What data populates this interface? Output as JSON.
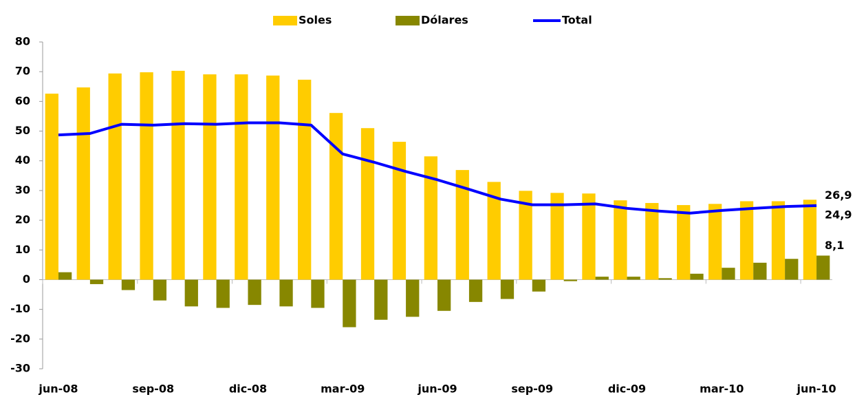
{
  "chart_data": {
    "type": "bar_line",
    "categories": [
      "jun-08",
      null,
      null,
      "sep-08",
      null,
      null,
      "dic-08",
      null,
      null,
      "mar-09",
      null,
      null,
      "jun-09",
      null,
      null,
      "sep-09",
      null,
      null,
      "dic-09",
      null,
      null,
      "mar-10",
      null,
      null,
      "jun-10"
    ],
    "series": [
      {
        "name": "Soles",
        "color": "#ffcc00",
        "kind": "bar",
        "values": [
          62.6,
          64.7,
          69.4,
          69.8,
          70.3,
          69.1,
          69.1,
          68.7,
          67.3,
          56.1,
          51.0,
          46.4,
          41.5,
          36.9,
          32.9,
          29.9,
          29.2,
          29.0,
          26.7,
          25.8,
          25.1,
          25.5,
          26.4,
          26.4,
          26.9
        ],
        "value_labels": [
          null,
          null,
          null,
          null,
          null,
          null,
          null,
          null,
          null,
          null,
          null,
          null,
          null,
          null,
          null,
          null,
          null,
          null,
          null,
          null,
          null,
          null,
          null,
          null,
          "26,9"
        ]
      },
      {
        "name": "Dólares",
        "color": "#878700",
        "kind": "bar",
        "values": [
          2.5,
          -1.5,
          -3.5,
          -7,
          -9,
          -9.5,
          -8.5,
          -9,
          -9.5,
          -16,
          -13.5,
          -12.5,
          -10.5,
          -7.5,
          -6.5,
          -4,
          -0.5,
          1,
          1,
          0.5,
          2,
          4,
          5.7,
          7,
          8.1
        ],
        "value_labels": [
          null,
          null,
          null,
          null,
          null,
          null,
          null,
          null,
          null,
          null,
          null,
          null,
          null,
          null,
          null,
          null,
          null,
          null,
          null,
          null,
          null,
          null,
          null,
          null,
          "8,1"
        ]
      },
      {
        "name": "Total",
        "color": "#0000ff",
        "kind": "line",
        "values": [
          48.7,
          49.2,
          52.3,
          52,
          52.5,
          52.3,
          52.8,
          52.8,
          52,
          42.3,
          39.5,
          36.4,
          33.6,
          30.4,
          27.1,
          25.2,
          25.2,
          25.5,
          24,
          23.1,
          22.4,
          23.3,
          24,
          24.6,
          24.9
        ],
        "value_labels": [
          null,
          null,
          null,
          null,
          null,
          null,
          null,
          null,
          null,
          null,
          null,
          null,
          null,
          null,
          null,
          null,
          null,
          null,
          null,
          null,
          null,
          null,
          null,
          null,
          "24,9"
        ]
      }
    ],
    "ylim": [
      -30,
      80
    ],
    "yticks": [
      -30,
      -20,
      -10,
      0,
      10,
      20,
      30,
      40,
      50,
      60,
      70,
      80
    ],
    "legend": "top"
  }
}
